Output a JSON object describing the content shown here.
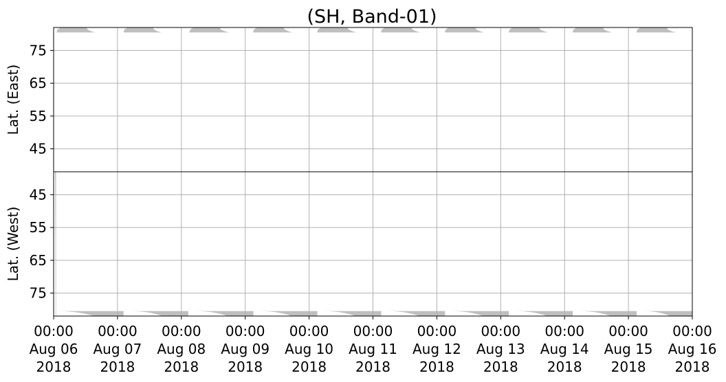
{
  "chart_data": {
    "type": "heatmap",
    "title": "(SH, Band-01)",
    "fill_color": "#bfbfbf",
    "grid": true,
    "grid_color": "#b0b0b0",
    "x": {
      "range": [
        "2018-08-06 00:00",
        "2018-08-16 00:00"
      ],
      "tick_labels": [
        {
          "time": "00:00",
          "date": "Aug 06",
          "year": "2018"
        },
        {
          "time": "00:00",
          "date": "Aug 07",
          "year": "2018"
        },
        {
          "time": "00:00",
          "date": "Aug 08",
          "year": "2018"
        },
        {
          "time": "00:00",
          "date": "Aug 09",
          "year": "2018"
        },
        {
          "time": "00:00",
          "date": "Aug 10",
          "year": "2018"
        },
        {
          "time": "00:00",
          "date": "Aug 11",
          "year": "2018"
        },
        {
          "time": "00:00",
          "date": "Aug 12",
          "year": "2018"
        },
        {
          "time": "00:00",
          "date": "Aug 13",
          "year": "2018"
        },
        {
          "time": "00:00",
          "date": "Aug 14",
          "year": "2018"
        },
        {
          "time": "00:00",
          "date": "Aug 15",
          "year": "2018"
        },
        {
          "time": "00:00",
          "date": "Aug 16",
          "year": "2018"
        }
      ]
    },
    "panels": [
      {
        "name": "east",
        "ylabel": "Lat. (East)",
        "ylim": [
          38,
          82
        ],
        "y_inverted": false,
        "yticks": [
          45,
          55,
          65,
          75
        ],
        "bands": [
          {
            "start": "2018-08-06 01:07",
            "end": "2018-08-06 15:36",
            "min_lat": 80.5
          },
          {
            "start": "2018-08-07 02:17",
            "end": "2018-08-07 16:32",
            "min_lat": 80.5
          },
          {
            "start": "2018-08-08 03:00",
            "end": "2018-08-08 17:45",
            "min_lat": 80.5
          },
          {
            "start": "2018-08-09 02:56",
            "end": "2018-08-09 17:43",
            "min_lat": 80.5
          },
          {
            "start": "2018-08-10 03:00",
            "end": "2018-08-10 17:45",
            "min_lat": 80.5
          },
          {
            "start": "2018-08-11 03:00",
            "end": "2018-08-11 17:45",
            "min_lat": 80.5
          },
          {
            "start": "2018-08-12 03:00",
            "end": "2018-08-12 17:45",
            "min_lat": 80.5
          },
          {
            "start": "2018-08-13 03:00",
            "end": "2018-08-13 17:45",
            "min_lat": 80.5
          },
          {
            "start": "2018-08-14 03:00",
            "end": "2018-08-14 17:45",
            "min_lat": 80.5
          },
          {
            "start": "2018-08-15 03:00",
            "end": "2018-08-15 17:45",
            "min_lat": 80.5
          }
        ]
      },
      {
        "name": "west",
        "ylabel": "Lat. (West)",
        "ylim": [
          38,
          82
        ],
        "y_inverted": true,
        "yticks": [
          75,
          65,
          55,
          45
        ],
        "bands": [
          {
            "start": "2018-08-06 00:30",
            "end": "2018-08-06 00:55",
            "min_lat": 38
          },
          {
            "start": "2018-08-06 01:31",
            "end": "2018-08-07 02:17",
            "min_lat": 80.5
          },
          {
            "start": "2018-08-07 05:05",
            "end": "2018-08-08 02:35",
            "min_lat": 80.5
          },
          {
            "start": "2018-08-08 05:30",
            "end": "2018-08-09 03:05",
            "min_lat": 80.5
          },
          {
            "start": "2018-08-09 05:40",
            "end": "2018-08-10 03:05",
            "min_lat": 80.5
          },
          {
            "start": "2018-08-10 05:40",
            "end": "2018-08-11 03:05",
            "min_lat": 80.5
          },
          {
            "start": "2018-08-11 05:40",
            "end": "2018-08-12 03:05",
            "min_lat": 80.5
          },
          {
            "start": "2018-08-12 05:40",
            "end": "2018-08-13 03:05",
            "min_lat": 80.5
          },
          {
            "start": "2018-08-13 05:40",
            "end": "2018-08-14 03:05",
            "min_lat": 80.5
          },
          {
            "start": "2018-08-14 05:40",
            "end": "2018-08-15 03:05",
            "min_lat": 80.5
          },
          {
            "start": "2018-08-15 05:40",
            "end": "2018-08-16 00:00",
            "min_lat": 80.5
          }
        ]
      }
    ]
  }
}
